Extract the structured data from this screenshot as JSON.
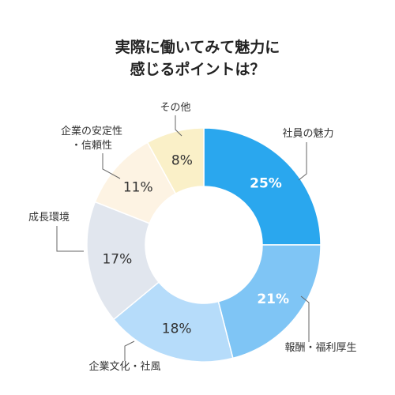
{
  "chart_data": {
    "type": "pie",
    "title_lines": [
      "実際に働いてみて魅力に",
      "感じるポイントは？"
    ],
    "slices": [
      {
        "label_lines": [
          "社員の魅力"
        ],
        "value": 25,
        "value_label": "25%",
        "color": "#2aa7ee",
        "text_color": "#ffffff"
      },
      {
        "label_lines": [
          "報酬・福利厚生"
        ],
        "value": 21,
        "value_label": "21%",
        "color": "#7fc5f5",
        "text_color": "#ffffff"
      },
      {
        "label_lines": [
          "企業文化・社風"
        ],
        "value": 18,
        "value_label": "18%",
        "color": "#b6dcfa",
        "text_color": "#333333"
      },
      {
        "label_lines": [
          "成長環境"
        ],
        "value": 17,
        "value_label": "17%",
        "color": "#e1e6ee",
        "text_color": "#333333"
      },
      {
        "label_lines": [
          "企業の安定性",
          "・信頼性"
        ],
        "value": 11,
        "value_label": "11%",
        "color": "#fdf3e3",
        "text_color": "#333333"
      },
      {
        "label_lines": [
          "その他"
        ],
        "value": 8,
        "value_label": "8%",
        "color": "#faf0c8",
        "text_color": "#333333"
      }
    ]
  }
}
